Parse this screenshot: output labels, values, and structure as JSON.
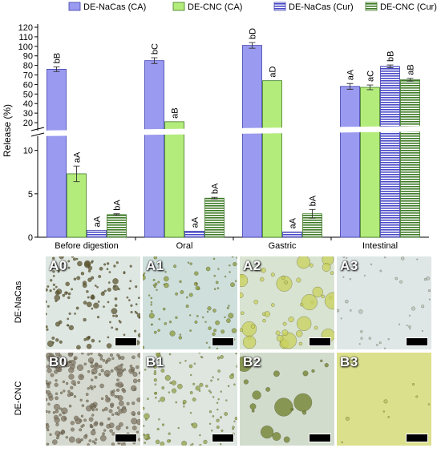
{
  "chart_data": {
    "type": "bar",
    "ylabel": "Release (%)",
    "categories": [
      "Before digestion",
      "Oral",
      "Gastric",
      "Intestinal"
    ],
    "series": [
      {
        "name": "DE-NaCas (CA)",
        "values": [
          76,
          85,
          101,
          58
        ],
        "errors": [
          2.5,
          3,
          3,
          3
        ],
        "labels": [
          "bB",
          "bC",
          "bD",
          "aA"
        ],
        "color": "#9a9af0",
        "pattern": "solid"
      },
      {
        "name": "DE-CNC (CA)",
        "values": [
          7.3,
          21,
          64,
          57
        ],
        "errors": [
          0.9,
          0,
          0,
          2.5
        ],
        "labels": [
          "aA",
          "aB",
          "aD",
          "aC"
        ],
        "color": "#b4ec7c",
        "pattern": "solid"
      },
      {
        "name": "DE-NaCas (Cur)",
        "values": [
          0.8,
          0.7,
          0.6,
          79
        ],
        "errors": [
          0,
          0,
          0,
          1.5
        ],
        "labels": [
          "aA",
          "aA",
          "aA",
          "bB"
        ],
        "color": "#9a9af0",
        "pattern": "hlines"
      },
      {
        "name": "DE-CNC (Cur)",
        "values": [
          2.6,
          4.5,
          2.7,
          65
        ],
        "errors": [
          0.1,
          0.1,
          0.5,
          1.5
        ],
        "labels": [
          "bA",
          "bA",
          "bA",
          "aB"
        ],
        "color": "#b4ec7c",
        "pattern": "hlines"
      }
    ],
    "axis_break": {
      "lower_range": [
        0,
        12
      ],
      "upper_range": [
        15,
        120
      ]
    },
    "lower_ticks": [
      0,
      5,
      10
    ],
    "upper_ticks": [
      20,
      30,
      40,
      50,
      60,
      70,
      80,
      90,
      100,
      110,
      120
    ],
    "legend_position": "top",
    "grid": false
  },
  "micrographs": {
    "rows": [
      {
        "label": "DE-NaCas",
        "panels": [
          {
            "id": "A0",
            "bg": "#dfe7e2",
            "particle": "#5d5630"
          },
          {
            "id": "A1",
            "bg": "#cfe0dc",
            "particle": "#8a9a3a"
          },
          {
            "id": "A2",
            "bg": "#d9e3d2",
            "particle": "#c8d25a"
          },
          {
            "id": "A3",
            "bg": "#dfe6e6",
            "particle": "#b8c2b8"
          }
        ]
      },
      {
        "label": "DE-CNC",
        "panels": [
          {
            "id": "B0",
            "bg": "#d5d9cf",
            "particle": "#807665"
          },
          {
            "id": "B1",
            "bg": "#dee6df",
            "particle": "#92a048"
          },
          {
            "id": "B2",
            "bg": "#d2dccd",
            "particle": "#6f7f2a"
          },
          {
            "id": "B3",
            "bg": "#dbe08c",
            "particle": "#b6bc5a"
          }
        ]
      }
    ]
  }
}
